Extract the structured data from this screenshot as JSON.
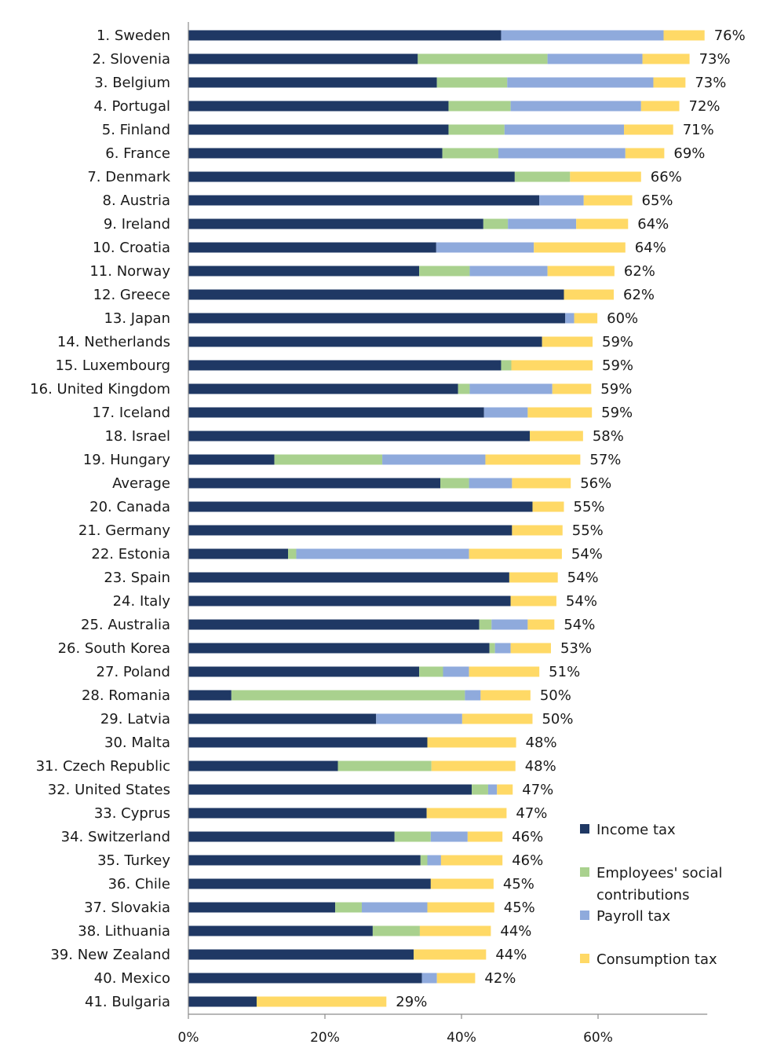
{
  "chart_data": {
    "type": "bar",
    "orientation": "horizontal",
    "stacked": true,
    "title": "",
    "xlabel": "",
    "ylabel": "",
    "xlim": [
      0,
      76
    ],
    "x_ticks": [
      "0%",
      "20%",
      "40%",
      "60%"
    ],
    "x_tick_values": [
      0,
      20,
      40,
      60
    ],
    "grid": false,
    "legend_position": "right",
    "categories": [
      "1. Sweden",
      "2. Slovenia",
      "3. Belgium",
      "4. Portugal",
      "5. Finland",
      "6. France",
      "7. Denmark",
      "8. Austria",
      "9. Ireland",
      "10. Croatia",
      "11. Norway",
      "12. Greece",
      "13. Japan",
      "14. Netherlands",
      "15. Luxembourg",
      "16. United Kingdom",
      "17. Iceland",
      "18. Israel",
      "19. Hungary",
      "Average",
      "20. Canada",
      "21. Germany",
      "22. Estonia",
      "23. Spain",
      "24. Italy",
      "25. Australia",
      "26. South Korea",
      "27. Poland",
      "28. Romania",
      "29. Latvia",
      "30. Malta",
      "31. Czech Republic",
      "32. United States",
      "33. Cyprus",
      "34. Switzerland",
      "35. Turkey",
      "36. Chile",
      "37. Slovakia",
      "38. Lithuania",
      "39. New Zealand",
      "40. Mexico",
      "41. Bulgaria"
    ],
    "series": [
      {
        "name": "Income tax",
        "color": "#1f3864",
        "values": [
          45.8,
          33.6,
          36.4,
          38.1,
          38.1,
          37.2,
          47.8,
          51.4,
          43.2,
          36.3,
          33.8,
          55.0,
          55.2,
          51.8,
          45.8,
          39.5,
          43.3,
          50.0,
          12.6,
          36.9,
          50.4,
          47.4,
          14.6,
          47.0,
          47.2,
          42.6,
          44.1,
          33.8,
          6.3,
          27.5,
          35.0,
          21.9,
          41.5,
          34.9,
          30.2,
          34.0,
          35.5,
          21.5,
          27.0,
          33.0,
          34.2,
          10.0
        ]
      },
      {
        "name": "Employees' social contributions",
        "color": "#a9d18e",
        "values": [
          0,
          19.0,
          10.3,
          9.1,
          8.2,
          8.2,
          8.1,
          0,
          3.6,
          0,
          7.4,
          0,
          0,
          0,
          1.5,
          1.7,
          0,
          0,
          15.8,
          4.2,
          0,
          0,
          1.2,
          0,
          0,
          1.8,
          0.8,
          3.5,
          34.2,
          0,
          0,
          13.7,
          2.4,
          0,
          5.3,
          1.0,
          0,
          3.9,
          6.9,
          0,
          0,
          0
        ]
      },
      {
        "name": "Payroll tax",
        "color": "#8faadc",
        "values": [
          23.8,
          13.9,
          21.4,
          19.1,
          17.5,
          18.6,
          0,
          6.5,
          10.0,
          14.3,
          11.4,
          0,
          1.3,
          0,
          0,
          12.1,
          6.4,
          0,
          15.1,
          6.3,
          0,
          0,
          25.3,
          0,
          0,
          5.3,
          2.3,
          3.8,
          2.3,
          12.6,
          0,
          0,
          1.3,
          0,
          5.4,
          2.0,
          0,
          9.6,
          0,
          0,
          2.2,
          0
        ]
      },
      {
        "name": "Consumption tax",
        "color": "#ffd966",
        "values": [
          6.0,
          6.9,
          4.7,
          5.6,
          7.2,
          5.7,
          10.4,
          7.1,
          7.6,
          13.4,
          9.8,
          7.3,
          3.4,
          7.4,
          11.9,
          5.7,
          9.4,
          7.8,
          13.9,
          8.6,
          4.6,
          7.4,
          13.6,
          7.1,
          6.7,
          3.9,
          5.9,
          10.3,
          7.3,
          10.3,
          13.0,
          12.3,
          2.3,
          11.7,
          5.1,
          9.0,
          9.2,
          9.8,
          10.4,
          10.6,
          5.6,
          19.0
        ]
      }
    ],
    "totals": [
      "76%",
      "73%",
      "73%",
      "72%",
      "71%",
      "69%",
      "66%",
      "65%",
      "64%",
      "64%",
      "62%",
      "62%",
      "60%",
      "59%",
      "59%",
      "59%",
      "59%",
      "58%",
      "57%",
      "56%",
      "55%",
      "55%",
      "54%",
      "54%",
      "54%",
      "54%",
      "53%",
      "51%",
      "50%",
      "50%",
      "48%",
      "48%",
      "47%",
      "47%",
      "46%",
      "46%",
      "45%",
      "45%",
      "44%",
      "44%",
      "42%",
      "29%"
    ],
    "legend": [
      {
        "label": "Income tax",
        "color": "#1f3864",
        "lines": [
          "Income tax"
        ]
      },
      {
        "label": "Employees' social contributions",
        "color": "#a9d18e",
        "lines": [
          "Employees' social",
          "contributions"
        ]
      },
      {
        "label": "Payroll tax",
        "color": "#8faadc",
        "lines": [
          "Payroll tax"
        ]
      },
      {
        "label": "Consumption tax",
        "color": "#ffd966",
        "lines": [
          "Consumption tax"
        ]
      }
    ]
  }
}
